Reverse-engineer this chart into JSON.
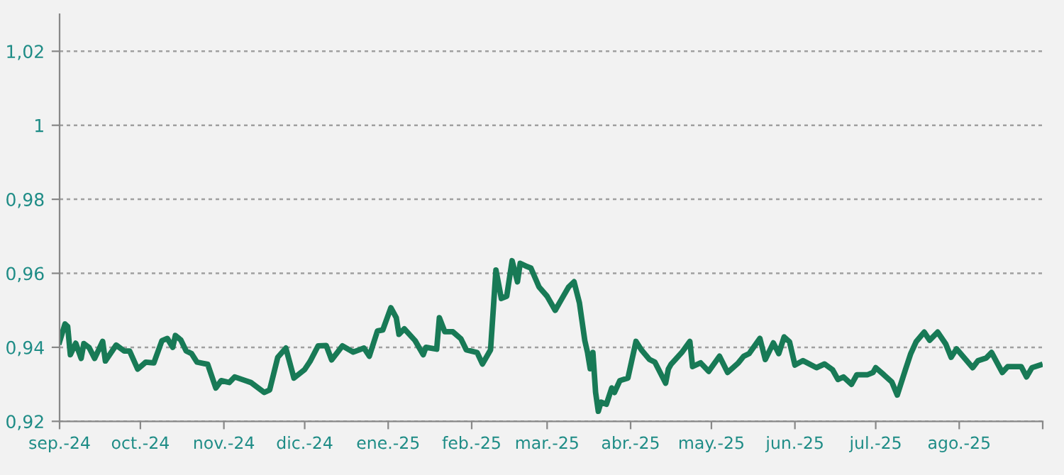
{
  "chart_data": {
    "type": "line",
    "x": [
      "2024-09-01",
      "2024-09-03",
      "2024-09-04",
      "2024-09-05",
      "2024-09-07",
      "2024-09-09",
      "2024-09-10",
      "2024-09-12",
      "2024-09-14",
      "2024-09-17",
      "2024-09-18",
      "2024-09-22",
      "2024-09-25",
      "2024-09-27",
      "2024-09-30",
      "2024-10-03",
      "2024-10-06",
      "2024-10-09",
      "2024-10-11",
      "2024-10-13",
      "2024-10-14",
      "2024-10-16",
      "2024-10-18",
      "2024-10-20",
      "2024-10-22",
      "2024-10-26",
      "2024-10-29",
      "2024-10-31",
      "2024-11-03",
      "2024-11-05",
      "2024-11-09",
      "2024-11-11",
      "2024-11-16",
      "2024-11-18",
      "2024-11-21",
      "2024-11-24",
      "2024-11-27",
      "2024-12-01",
      "2024-12-03",
      "2024-12-06",
      "2024-12-09",
      "2024-12-11",
      "2024-12-15",
      "2024-12-19",
      "2024-12-23",
      "2024-12-25",
      "2024-12-28",
      "2024-12-30",
      "2025-01-02",
      "2025-01-04",
      "2025-01-05",
      "2025-01-07",
      "2025-01-11",
      "2025-01-14",
      "2025-01-15",
      "2025-01-19",
      "2025-01-20",
      "2025-01-22",
      "2025-01-25",
      "2025-01-28",
      "2025-01-30",
      "2025-02-03",
      "2025-02-05",
      "2025-02-08",
      "2025-02-10",
      "2025-02-12",
      "2025-02-14",
      "2025-02-16",
      "2025-02-18",
      "2025-02-19",
      "2025-02-21",
      "2025-02-23",
      "2025-02-26",
      "2025-03-01",
      "2025-03-04",
      "2025-03-07",
      "2025-03-09",
      "2025-03-11",
      "2025-03-13",
      "2025-03-15",
      "2025-03-16",
      "2025-03-17",
      "2025-03-18",
      "2025-03-19",
      "2025-03-20",
      "2025-03-21",
      "2025-03-23",
      "2025-03-25",
      "2025-03-26",
      "2025-03-28",
      "2025-03-31",
      "2025-04-03",
      "2025-04-05",
      "2025-04-08",
      "2025-04-10",
      "2025-04-14",
      "2025-04-15",
      "2025-04-16",
      "2025-04-20",
      "2025-04-23",
      "2025-04-24",
      "2025-04-27",
      "2025-04-30",
      "2025-05-04",
      "2025-05-07",
      "2025-05-11",
      "2025-05-13",
      "2025-05-15",
      "2025-05-19",
      "2025-05-21",
      "2025-05-24",
      "2025-05-26",
      "2025-05-28",
      "2025-05-30",
      "2025-06-01",
      "2025-06-04",
      "2025-06-09",
      "2025-06-12",
      "2025-06-15",
      "2025-06-17",
      "2025-06-19",
      "2025-06-22",
      "2025-06-24",
      "2025-06-28",
      "2025-06-30",
      "2025-07-01",
      "2025-07-04",
      "2025-07-07",
      "2025-07-09",
      "2025-07-12",
      "2025-07-14",
      "2025-07-16",
      "2025-07-19",
      "2025-07-21",
      "2025-07-24",
      "2025-07-27",
      "2025-07-29",
      "2025-07-31",
      "2025-08-06",
      "2025-08-08",
      "2025-08-11",
      "2025-08-13",
      "2025-08-17",
      "2025-08-19",
      "2025-08-24",
      "2025-08-26",
      "2025-08-28",
      "2025-08-31"
    ],
    "series": [
      {
        "color": "#187a56",
        "values": [
          0.9415,
          0.9463,
          0.9456,
          0.938,
          0.9411,
          0.937,
          0.941,
          0.9399,
          0.937,
          0.9416,
          0.9363,
          0.9406,
          0.939,
          0.939,
          0.9341,
          0.936,
          0.9358,
          0.9418,
          0.9424,
          0.94,
          0.9432,
          0.942,
          0.939,
          0.9383,
          0.936,
          0.9354,
          0.929,
          0.931,
          0.9305,
          0.932,
          0.931,
          0.9305,
          0.9278,
          0.9285,
          0.9373,
          0.9398,
          0.9317,
          0.934,
          0.9362,
          0.9404,
          0.9405,
          0.9366,
          0.9404,
          0.9387,
          0.9398,
          0.9376,
          0.9444,
          0.9447,
          0.9507,
          0.948,
          0.9435,
          0.945,
          0.9418,
          0.938,
          0.94,
          0.9395,
          0.948,
          0.9442,
          0.9442,
          0.9423,
          0.9393,
          0.9386,
          0.9355,
          0.9393,
          0.9609,
          0.9532,
          0.9538,
          0.9634,
          0.9577,
          0.9627,
          0.962,
          0.9614,
          0.9563,
          0.9538,
          0.95,
          0.9538,
          0.9563,
          0.9577,
          0.952,
          0.9418,
          0.9386,
          0.9342,
          0.9386,
          0.9278,
          0.9227,
          0.9252,
          0.9246,
          0.929,
          0.9278,
          0.931,
          0.9317,
          0.9416,
          0.9393,
          0.9367,
          0.936,
          0.9303,
          0.9341,
          0.9354,
          0.9386,
          0.9416,
          0.9348,
          0.9358,
          0.9335,
          0.9376,
          0.9332,
          0.9358,
          0.9376,
          0.9383,
          0.9424,
          0.9367,
          0.9412,
          0.9383,
          0.9428,
          0.9415,
          0.9352,
          0.9364,
          0.9345,
          0.9355,
          0.9339,
          0.9313,
          0.932,
          0.93,
          0.9326,
          0.9326,
          0.9332,
          0.9345,
          0.9326,
          0.9306,
          0.9271,
          0.9339,
          0.9383,
          0.9415,
          0.9441,
          0.9419,
          0.9441,
          0.9409,
          0.9373,
          0.9396,
          0.9345,
          0.9364,
          0.9371,
          0.9386,
          0.9332,
          0.9348,
          0.9348,
          0.932,
          0.9345,
          0.9352
        ]
      }
    ],
    "xlim": [
      "2024-09-01",
      "2025-09-01"
    ],
    "xticks": [
      {
        "value": "2024-09-01",
        "label": "sep.-24"
      },
      {
        "value": "2024-10-01",
        "label": "oct.-24"
      },
      {
        "value": "2024-11-01",
        "label": "nov.-24"
      },
      {
        "value": "2024-12-01",
        "label": "dic.-24"
      },
      {
        "value": "2025-01-01",
        "label": "ene.-25"
      },
      {
        "value": "2025-02-01",
        "label": "feb.-25"
      },
      {
        "value": "2025-03-01",
        "label": "mar.-25"
      },
      {
        "value": "2025-04-01",
        "label": "abr.-25"
      },
      {
        "value": "2025-05-01",
        "label": "may.-25"
      },
      {
        "value": "2025-06-01",
        "label": "jun.-25"
      },
      {
        "value": "2025-07-01",
        "label": "jul.-25"
      },
      {
        "value": "2025-08-01",
        "label": "ago.-25"
      },
      {
        "value": "2025-09-01",
        "label": null
      }
    ],
    "ylim": [
      0.92,
      1.03
    ],
    "yticks": [
      {
        "value": 0.92,
        "label": "0,92"
      },
      {
        "value": 0.94,
        "label": "0,94"
      },
      {
        "value": 0.96,
        "label": "0,96"
      },
      {
        "value": 0.98,
        "label": "0,98"
      },
      {
        "value": 1,
        "label": "1"
      },
      {
        "value": 1.02,
        "label": "1,02"
      }
    ],
    "grid": "y",
    "legend": false,
    "marker": "none",
    "line_style": "solid"
  }
}
